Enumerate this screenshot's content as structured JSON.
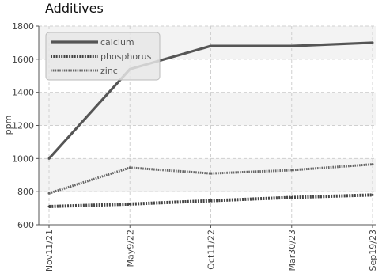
{
  "chart_data": {
    "type": "line",
    "title": "Additives",
    "ylabel": "ppm",
    "xlabel": "",
    "categories": [
      "Nov11/21",
      "May9/22",
      "Oct11/22",
      "Mar30/23",
      "Sep19/23"
    ],
    "ylim": [
      600,
      1800
    ],
    "yticks": [
      600,
      800,
      1000,
      1200,
      1400,
      1600,
      1800
    ],
    "grid": true,
    "legend_position": "top-left",
    "series": [
      {
        "name": "calcium",
        "values": [
          1000,
          1540,
          1680,
          1680,
          1700
        ],
        "color": "#555555",
        "style": "solid"
      },
      {
        "name": "phosphorus",
        "values": [
          710,
          725,
          745,
          765,
          780
        ],
        "color": "#444444",
        "style": "dotted-thick"
      },
      {
        "name": "zinc",
        "values": [
          790,
          945,
          910,
          930,
          965
        ],
        "color": "#666666",
        "style": "dotted"
      }
    ]
  }
}
